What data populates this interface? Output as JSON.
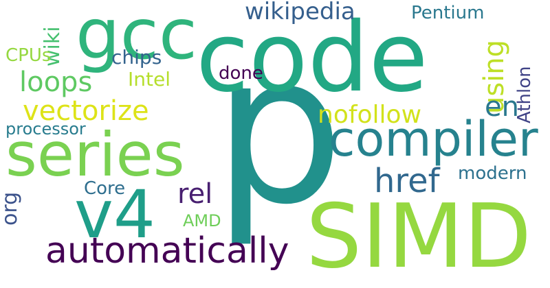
{
  "words": {
    "p": "p",
    "code": "code",
    "simd": "SIMD",
    "gcc": "gcc",
    "series": "series",
    "v4": "v4",
    "compiler": "compiler",
    "automatically": "automatically",
    "vectorize": "vectorize",
    "loops": "loops",
    "href": "href",
    "wikipedia": "wikipedia",
    "using": "using",
    "nofollow": "nofollow",
    "en": "en",
    "rel": "rel",
    "processor": "processor",
    "org": "org",
    "wiki": "wiki",
    "chips": "chips",
    "cpus": "CPUs",
    "intel": "Intel",
    "done": "done",
    "pentium": "Pentium",
    "athlon": "Athlon",
    "modern": "modern",
    "core": "Core",
    "amd": "AMD"
  },
  "colors": {
    "p": "#21918c",
    "code": "#22a884",
    "simd": "#95d840",
    "gcc": "#2fb47c",
    "series": "#7ad151",
    "v4": "#1f9e89",
    "compiler": "#26828e",
    "automatically": "#440154",
    "vectorize": "#dde318",
    "loops": "#5ec962",
    "href": "#31688e",
    "wikipedia": "#355f8d",
    "using": "#bddf26",
    "nofollow": "#d2e21b",
    "en": "#2a788e",
    "rel": "#481f70",
    "processor": "#287c8e",
    "org": "#3b528b",
    "wiki": "#46c06f",
    "chips": "#33638d",
    "cpus": "#95d840",
    "intel": "#b5de2b",
    "done": "#440154",
    "pentium": "#2a788e",
    "athlon": "#414487",
    "modern": "#2c718e",
    "core": "#2e6e8e",
    "amd": "#6ece58"
  }
}
